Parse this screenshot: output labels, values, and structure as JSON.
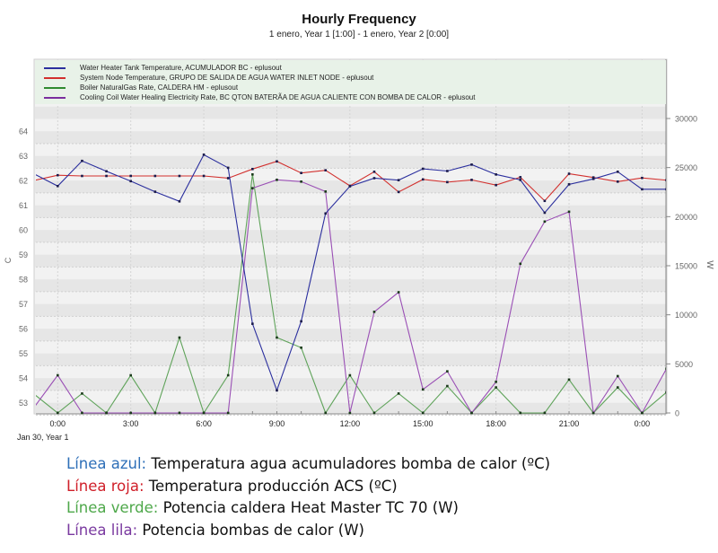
{
  "title": "Hourly Frequency",
  "subtitle": "1 enero, Year 1 [1:00] - 1 enero, Year 2 [0:00]",
  "legend": [
    {
      "label": "Water Heater Tank Temperature, ACUMULADOR BC - eplusout",
      "color": "#2b2f9e"
    },
    {
      "label": "System Node Temperature, GRUPO DE SALIDA DE AGUA WATER INLET NODE - eplusout",
      "color": "#d2302e"
    },
    {
      "label": "Boiler NaturalGas Rate, CALDERA HM - eplusout",
      "color": "#2f8a2f"
    },
    {
      "label": "Cooling Coil Water Healing Electricity Rate, BC QTON BATERÃA DE AGUA CALIENTE CON BOMBA DE CALOR - eplusout",
      "color": "#7a2e9e"
    }
  ],
  "notes": [
    {
      "key": "Línea azul:",
      "text": " Temperatura agua acumuladores bomba de calor (ºC)"
    },
    {
      "key": "Línea roja:",
      "text": " Temperatura producción ACS (ºC)"
    },
    {
      "key": "Línea verde:",
      "text": " Potencia caldera Heat Master TC 70 (W)"
    },
    {
      "key": "Línea lila:",
      "text": " Potencia bombas de calor (W)"
    }
  ],
  "chart_data": {
    "type": "line",
    "title": "Hourly Frequency",
    "x_unit": "hour",
    "x": [
      -1,
      0,
      1,
      2,
      3,
      4,
      5,
      6,
      7,
      8,
      9,
      10,
      11,
      12,
      13,
      14,
      15,
      16,
      17,
      18,
      19,
      20,
      21,
      22,
      23,
      24,
      25
    ],
    "x_range": [
      -0.9,
      25
    ],
    "x_ticks": [
      {
        "h": 0,
        "label": "0:00"
      },
      {
        "h": 3,
        "label": "3:00"
      },
      {
        "h": 6,
        "label": "6:00"
      },
      {
        "h": 9,
        "label": "9:00"
      },
      {
        "h": 12,
        "label": "12:00"
      },
      {
        "h": 15,
        "label": "15:00"
      },
      {
        "h": 18,
        "label": "18:00"
      },
      {
        "h": 21,
        "label": "21:00"
      },
      {
        "h": 24,
        "label": "0:00"
      }
    ],
    "x_sublabel": "Jan 30, Year 1",
    "ylabel_left": "C",
    "ylabel_right": "W",
    "ylim_left": [
      52.55,
      65.1
    ],
    "ylim_right": [
      0,
      30000
    ],
    "yticks_left": [
      "53",
      "54",
      "55",
      "56",
      "57",
      "58",
      "59",
      "60",
      "61",
      "62",
      "63",
      "64"
    ],
    "yticks_right": [
      "0",
      "5000",
      "10000",
      "15000",
      "20000",
      "25000",
      "30000"
    ],
    "grid": true,
    "legend_position": "top",
    "series": [
      {
        "name": "Water Heater Tank Temperature, ACUMULADOR BC - eplusout",
        "axis": "left",
        "color": "#2b2f9e",
        "values": [
          62.29,
          61.78,
          62.8,
          62.38,
          61.98,
          61.55,
          61.16,
          63.05,
          62.52,
          56.2,
          53.5,
          56.3,
          60.67,
          61.77,
          62.1,
          62.02,
          62.48,
          62.39,
          62.65,
          62.25,
          62.03,
          60.7,
          61.85,
          62.07,
          62.36,
          61.65,
          61.65
        ]
      },
      {
        "name": "System Node Temperature, GRUPO DE SALIDA DE AGUA WATER INLET NODE - eplusout",
        "axis": "left",
        "color": "#d2302e",
        "values": [
          62.0,
          62.22,
          62.19,
          62.19,
          62.19,
          62.19,
          62.19,
          62.19,
          62.1,
          62.47,
          62.78,
          62.31,
          62.42,
          61.79,
          62.36,
          61.54,
          62.05,
          61.94,
          62.03,
          61.82,
          62.14,
          61.18,
          62.28,
          62.13,
          61.96,
          62.11,
          62.02
        ]
      },
      {
        "name": "Boiler NaturalGas Rate, CALDERA HM - eplusout",
        "axis": "right",
        "color": "#5fa35a",
        "values": [
          1980,
          0,
          1980,
          0,
          3840,
          0,
          7680,
          0,
          3840,
          24300,
          7680,
          6650,
          0,
          3840,
          0,
          1980,
          0,
          2740,
          0,
          2600,
          0,
          0,
          3400,
          0,
          2600,
          0,
          2100
        ]
      },
      {
        "name": "Cooling Coil Water Healing Electricity Rate, BC QTON BATERÃA DE AGUA CALIENTE CON BOMBA DE CALOR - eplusout",
        "axis": "right",
        "color": "#9a4fb5",
        "values": [
          460,
          3840,
          0,
          0,
          0,
          0,
          0,
          0,
          0,
          22900,
          23750,
          23570,
          22560,
          0,
          10300,
          12300,
          2400,
          4240,
          0,
          3170,
          15200,
          19500,
          20500,
          0,
          3750,
          0,
          4500
        ]
      }
    ]
  }
}
